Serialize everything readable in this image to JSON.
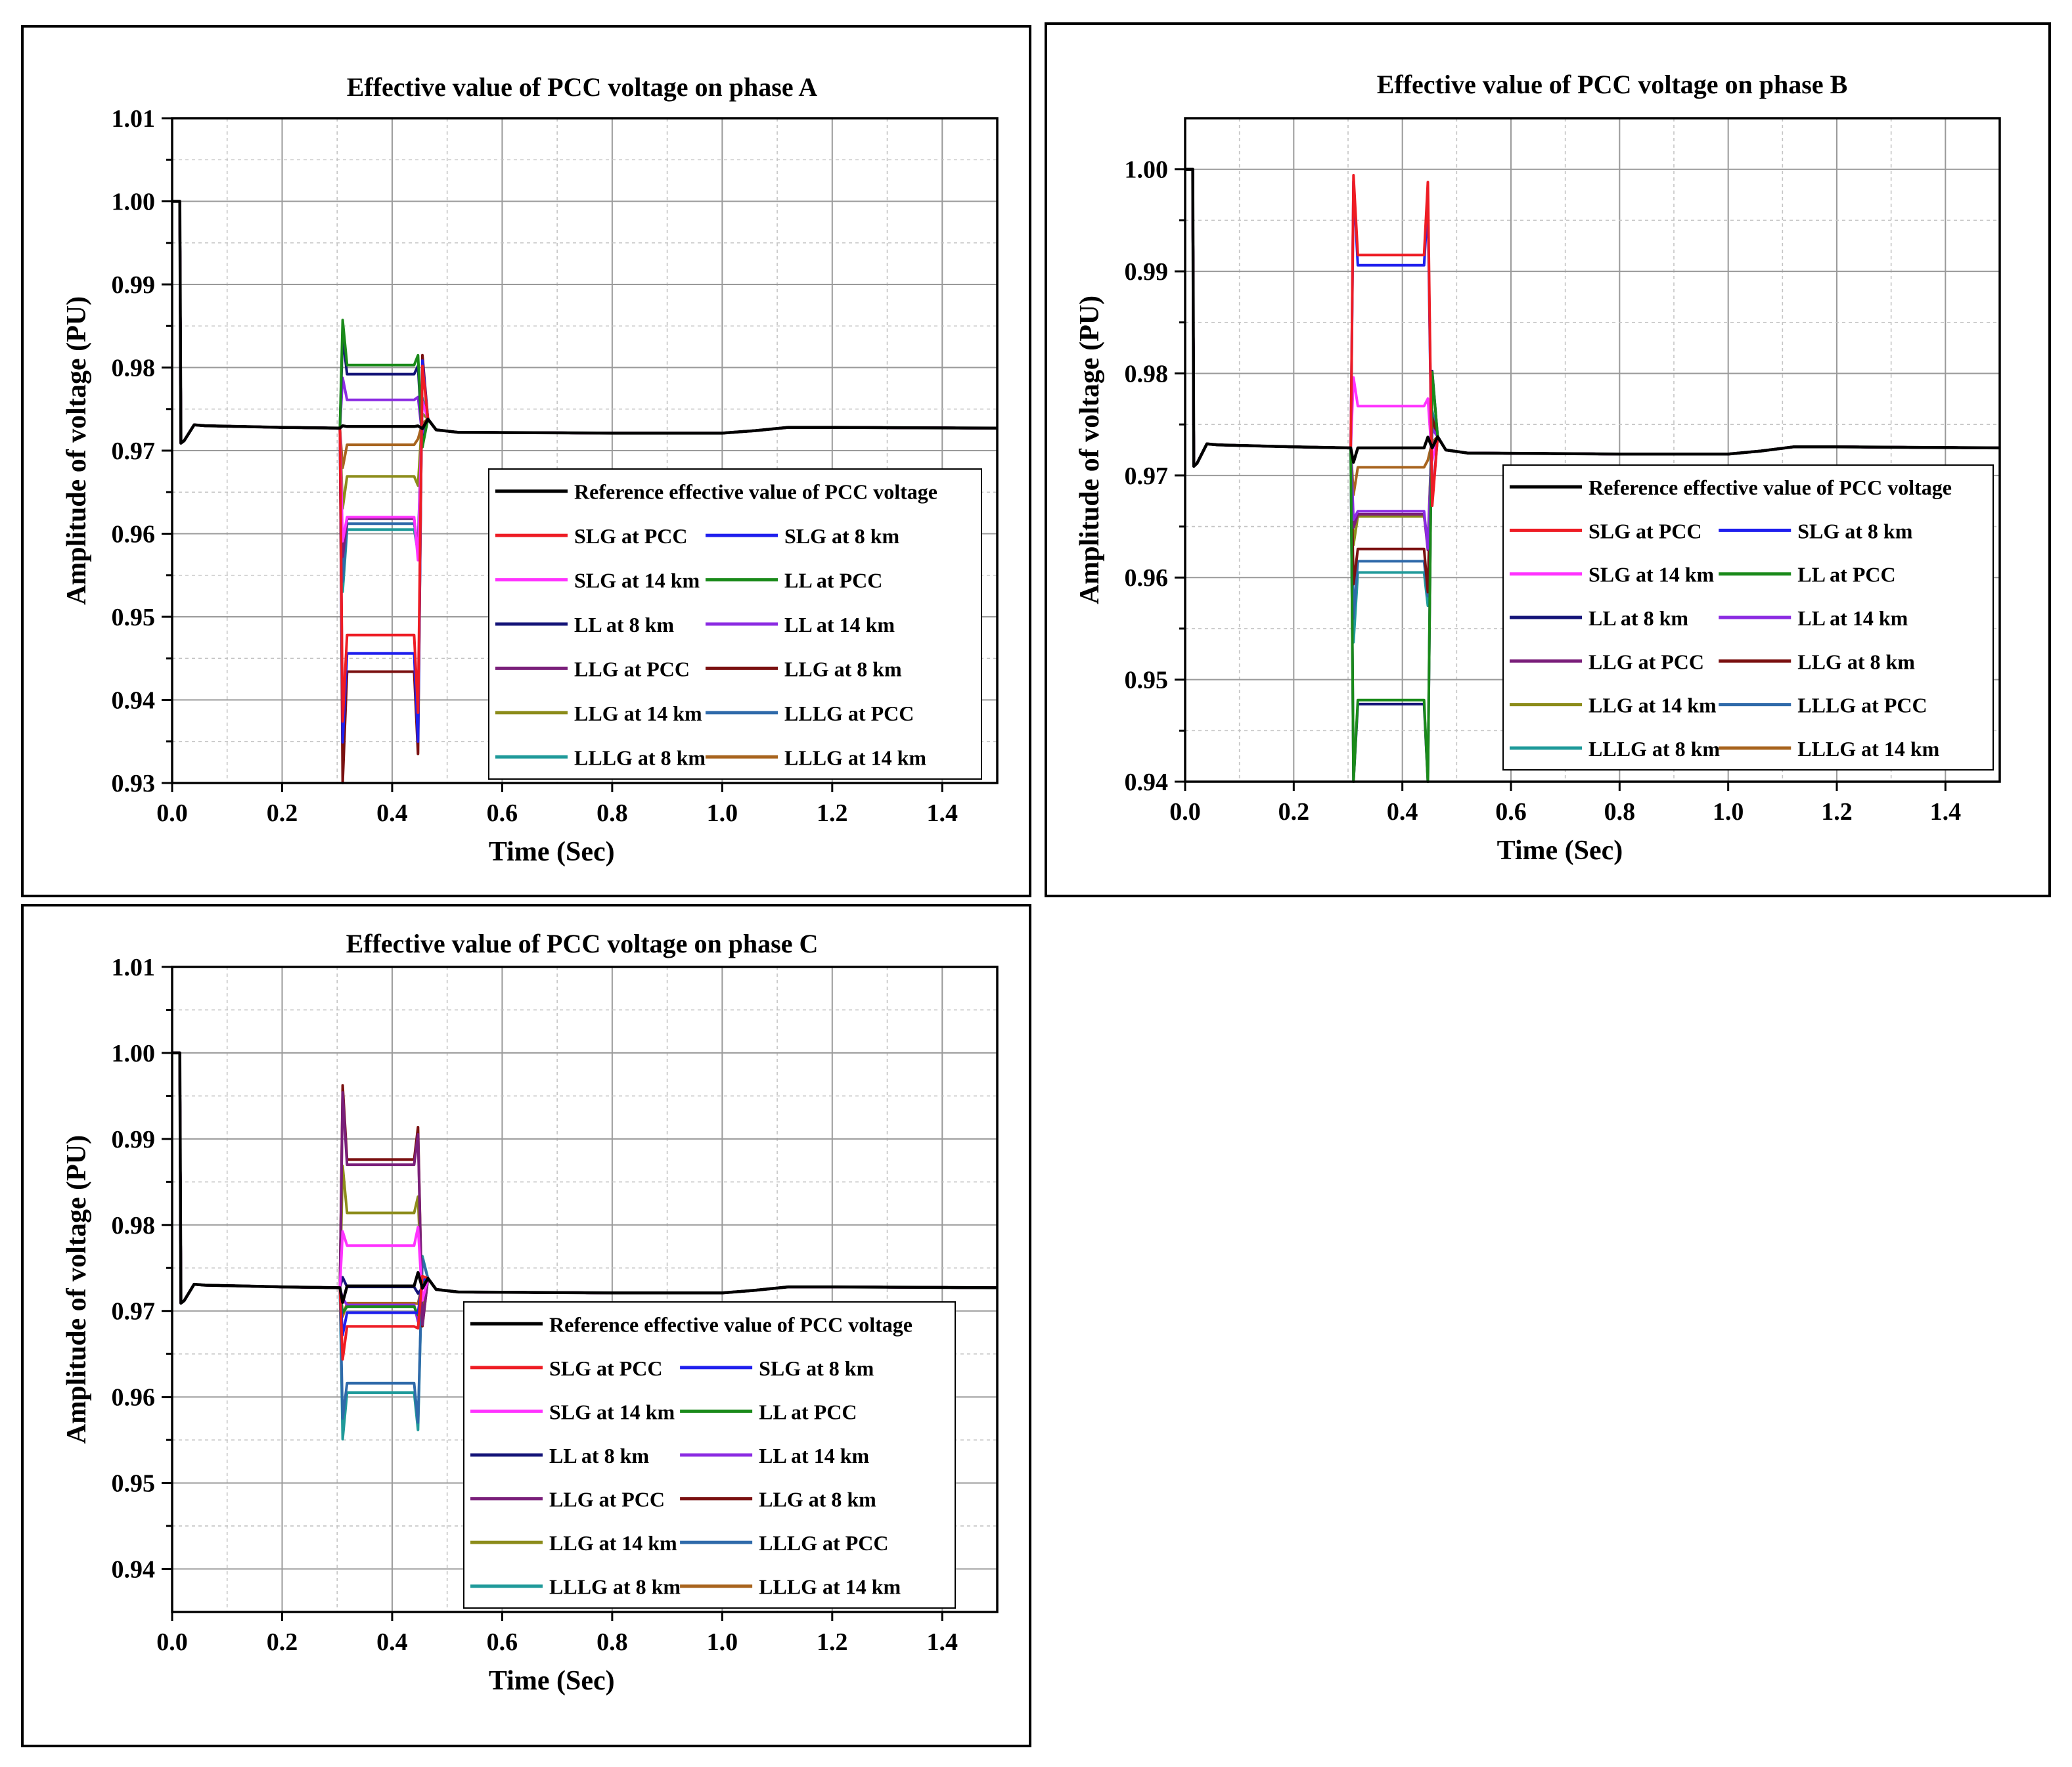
{
  "legend_names": [
    "Reference effective value of PCC voltage",
    "SLG at PCC",
    "SLG at 8 km",
    "SLG at 14 km",
    "LL at PCC",
    "LL at 8 km",
    "LL at 14 km",
    "LLG at PCC",
    "LLG at 8 km",
    "LLG at 14 km",
    "LLLG at PCC",
    "LLLG at 8 km",
    "LLLG at 14 km"
  ],
  "series_colors": [
    "#000000",
    "#ee1c24",
    "#1f1fee",
    "#ff33ff",
    "#1a8a1a",
    "#141478",
    "#8b2be2",
    "#7a1f7a",
    "#7a1010",
    "#8c8c1a",
    "#2f6aaa",
    "#1f9a9a",
    "#a8641e"
  ],
  "chart_data": [
    {
      "type": "line",
      "title": "Effective value of PCC voltage on phase A",
      "xlabel": "Time (Sec)",
      "ylabel": "Amplitude of voltage (PU)",
      "xlim": [
        0,
        1.5
      ],
      "ylim": [
        0.93,
        1.01
      ],
      "xticks": [
        "0.0",
        "0.2",
        "0.4",
        "0.6",
        "0.8",
        "1.0",
        "1.2",
        "1.4"
      ],
      "yticks": [
        "0.93",
        "0.94",
        "0.95",
        "0.96",
        "0.97",
        "0.98",
        "0.99",
        "1.00",
        "1.01"
      ],
      "grid": true,
      "legend_position": "lower-right",
      "steady_state": 0.9727,
      "fault_window": [
        0.31,
        0.45
      ],
      "series": [
        {
          "name": "Reference effective value of PCC voltage",
          "fault_value": 0.9729
        },
        {
          "name": "SLG at PCC",
          "fault_value": 0.9478
        },
        {
          "name": "SLG at 8 km",
          "fault_value": 0.9456
        },
        {
          "name": "SLG at 14 km",
          "fault_value": 0.962
        },
        {
          "name": "LL at PCC",
          "fault_value": 0.9803
        },
        {
          "name": "LL at 8 km",
          "fault_value": 0.9792
        },
        {
          "name": "LL at 14 km",
          "fault_value": 0.9761
        },
        {
          "name": "LLG at PCC",
          "fault_value": 0.9618
        },
        {
          "name": "LLG at 8 km",
          "fault_value": 0.9434
        },
        {
          "name": "LLG at 14 km",
          "fault_value": 0.9669
        },
        {
          "name": "LLLG at PCC",
          "fault_value": 0.9612
        },
        {
          "name": "LLLG at 8 km",
          "fault_value": 0.9605
        },
        {
          "name": "LLLG at 14 km",
          "fault_value": 0.9707
        }
      ]
    },
    {
      "type": "line",
      "title": "Effective value of PCC voltage on phase B",
      "xlabel": "Time (Sec)",
      "ylabel": "Amplitude of voltage (PU)",
      "xlim": [
        0,
        1.5
      ],
      "ylim": [
        0.94,
        1.005
      ],
      "xticks": [
        "0.0",
        "0.2",
        "0.4",
        "0.6",
        "0.8",
        "1.0",
        "1.2",
        "1.4"
      ],
      "yticks": [
        "0.94",
        "0.95",
        "0.96",
        "0.97",
        "0.98",
        "0.99",
        "1.00"
      ],
      "grid": true,
      "legend_position": "lower-right",
      "steady_state": 0.9727,
      "fault_window": [
        0.31,
        0.45
      ],
      "series": [
        {
          "name": "Reference effective value of PCC voltage",
          "fault_value": 0.9727
        },
        {
          "name": "SLG at PCC",
          "fault_value": 0.9916
        },
        {
          "name": "SLG at 8 km",
          "fault_value": 0.9906
        },
        {
          "name": "SLG at 14 km",
          "fault_value": 0.9768
        },
        {
          "name": "LL at PCC",
          "fault_value": 0.948
        },
        {
          "name": "LL at 8 km",
          "fault_value": 0.9476
        },
        {
          "name": "LL at 14 km",
          "fault_value": 0.9665
        },
        {
          "name": "LLG at PCC",
          "fault_value": 0.9662
        },
        {
          "name": "LLG at 8 km",
          "fault_value": 0.9628
        },
        {
          "name": "LLG at 14 km",
          "fault_value": 0.966
        },
        {
          "name": "LLLG at PCC",
          "fault_value": 0.9616
        },
        {
          "name": "LLLG at 8 km",
          "fault_value": 0.9605
        },
        {
          "name": "LLLG at 14 km",
          "fault_value": 0.9708
        }
      ]
    },
    {
      "type": "line",
      "title": "Effective value of PCC voltage on phase C",
      "xlabel": "Time (Sec)",
      "ylabel": "Amplitude of voltage (PU)",
      "xlim": [
        0,
        1.5
      ],
      "ylim": [
        0.935,
        1.01
      ],
      "xticks": [
        "0.0",
        "0.2",
        "0.4",
        "0.6",
        "0.8",
        "1.0",
        "1.2",
        "1.4"
      ],
      "yticks": [
        "0.94",
        "0.95",
        "0.96",
        "0.97",
        "0.98",
        "0.99",
        "1.00",
        "1.01"
      ],
      "grid": true,
      "legend_position": "lower-right",
      "steady_state": 0.9727,
      "fault_window": [
        0.31,
        0.45
      ],
      "series": [
        {
          "name": "Reference effective value of PCC voltage",
          "fault_value": 0.9729
        },
        {
          "name": "SLG at PCC",
          "fault_value": 0.9682
        },
        {
          "name": "SLG at 8 km",
          "fault_value": 0.9698
        },
        {
          "name": "SLG at 14 km",
          "fault_value": 0.9776
        },
        {
          "name": "LL at PCC",
          "fault_value": 0.9705
        },
        {
          "name": "LL at 8 km",
          "fault_value": 0.9728
        },
        {
          "name": "LL at 14 km",
          "fault_value": 0.9707
        },
        {
          "name": "LLG at PCC",
          "fault_value": 0.987
        },
        {
          "name": "LLG at 8 km",
          "fault_value": 0.9876
        },
        {
          "name": "LLG at 14 km",
          "fault_value": 0.9814
        },
        {
          "name": "LLLG at PCC",
          "fault_value": 0.9616
        },
        {
          "name": "LLLG at 8 km",
          "fault_value": 0.9605
        },
        {
          "name": "LLLG at 14 km",
          "fault_value": 0.9709
        }
      ]
    }
  ]
}
